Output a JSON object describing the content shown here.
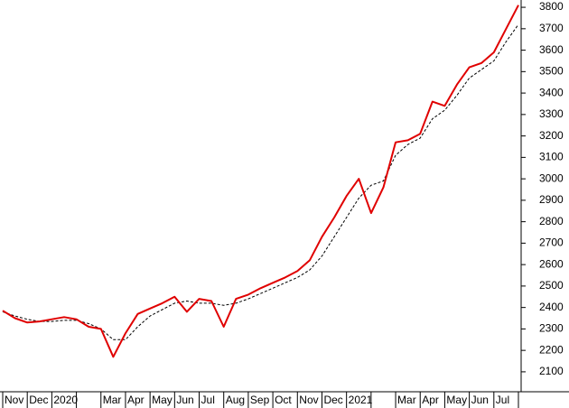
{
  "chart_data": {
    "type": "line",
    "categories": [
      "Nov",
      null,
      "Dec",
      null,
      "2020",
      null,
      null,
      null,
      "Mar",
      null,
      "Apr",
      null,
      "May",
      null,
      "Jun",
      null,
      "Jul",
      null,
      "Aug",
      null,
      "Sep",
      null,
      "Oct",
      null,
      "Nov",
      null,
      "Dec",
      null,
      "2021",
      null,
      null,
      null,
      "Mar",
      null,
      "Apr",
      null,
      "May",
      null,
      "Jun",
      null,
      "Jul",
      null,
      null
    ],
    "series": [
      {
        "color": "#e00000",
        "style": "solid",
        "values": [
          2385,
          2350,
          2330,
          2335,
          2345,
          2355,
          2345,
          2310,
          2300,
          2170,
          2280,
          2370,
          2395,
          2420,
          2450,
          2380,
          2440,
          2430,
          2310,
          2440,
          2460,
          2490,
          2515,
          2540,
          2570,
          2620,
          2730,
          2820,
          2920,
          3000,
          2840,
          2960,
          3170,
          3180,
          3210,
          3360,
          3340,
          3440,
          3520,
          3540,
          3590,
          3700,
          3810
        ]
      },
      {
        "color": "#000000",
        "style": "dashed",
        "values": [
          2380,
          2360,
          2345,
          2335,
          2335,
          2340,
          2340,
          2325,
          2300,
          2250,
          2250,
          2310,
          2360,
          2390,
          2420,
          2430,
          2420,
          2420,
          2410,
          2420,
          2440,
          2465,
          2490,
          2515,
          2540,
          2575,
          2640,
          2730,
          2820,
          2910,
          2970,
          2990,
          3110,
          3160,
          3190,
          3280,
          3320,
          3390,
          3470,
          3510,
          3550,
          3640,
          3720
        ]
      }
    ],
    "ylim": [
      2007,
      3834
    ],
    "yticks": [
      2100,
      2200,
      2300,
      2400,
      2500,
      2600,
      2700,
      2800,
      2900,
      3000,
      3100,
      3200,
      3300,
      3400,
      3500,
      3600,
      3700,
      3800
    ],
    "y_axis_side": "right",
    "grid": false
  }
}
